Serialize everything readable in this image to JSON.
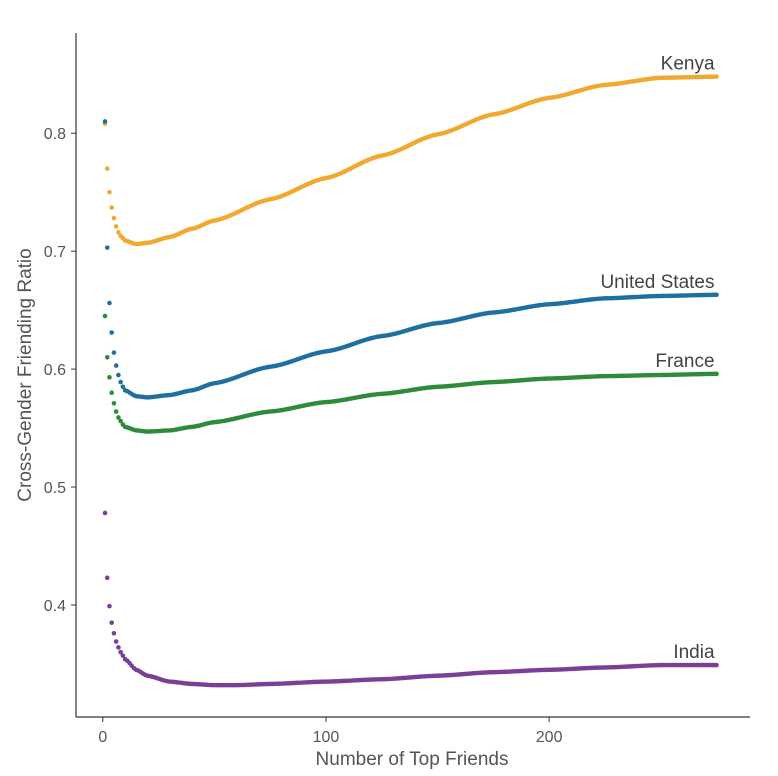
{
  "chart_data": {
    "type": "line",
    "title": "",
    "xlabel": "Number of Top Friends",
    "ylabel": "Cross-Gender Friending Ratio",
    "xlim": [
      -12,
      290
    ],
    "ylim": [
      0.305,
      0.885
    ],
    "x_ticks": [
      0,
      100,
      200
    ],
    "x_tick_labels": [
      "0",
      "100",
      "200"
    ],
    "y_ticks": [
      0.4,
      0.5,
      0.6,
      0.7,
      0.8
    ],
    "y_tick_labels": [
      "0.4",
      "0.5",
      "0.6",
      "0.7",
      "0.8"
    ],
    "grid": false,
    "legend": "none (series labelled at line ends)",
    "series": [
      {
        "name": "Kenya",
        "color": "#F2A82E",
        "points": [
          [
            1,
            0.808
          ],
          [
            2,
            0.77
          ],
          [
            3,
            0.75
          ],
          [
            4,
            0.737
          ],
          [
            5,
            0.728
          ],
          [
            6,
            0.721
          ],
          [
            7,
            0.716
          ],
          [
            8,
            0.713
          ],
          [
            9,
            0.711
          ],
          [
            10,
            0.709
          ],
          [
            15,
            0.706
          ],
          [
            20,
            0.707
          ],
          [
            30,
            0.712
          ],
          [
            40,
            0.719
          ],
          [
            50,
            0.726
          ],
          [
            75,
            0.744
          ],
          [
            100,
            0.762
          ],
          [
            125,
            0.781
          ],
          [
            150,
            0.799
          ],
          [
            175,
            0.816
          ],
          [
            200,
            0.83
          ],
          [
            225,
            0.841
          ],
          [
            250,
            0.847
          ],
          [
            275,
            0.848
          ]
        ]
      },
      {
        "name": "United States",
        "color": "#1F6FA0",
        "points": [
          [
            1,
            0.81
          ],
          [
            2,
            0.703
          ],
          [
            3,
            0.656
          ],
          [
            4,
            0.631
          ],
          [
            5,
            0.614
          ],
          [
            6,
            0.603
          ],
          [
            7,
            0.595
          ],
          [
            8,
            0.589
          ],
          [
            9,
            0.585
          ],
          [
            10,
            0.582
          ],
          [
            15,
            0.577
          ],
          [
            20,
            0.576
          ],
          [
            30,
            0.578
          ],
          [
            40,
            0.582
          ],
          [
            50,
            0.588
          ],
          [
            75,
            0.602
          ],
          [
            100,
            0.615
          ],
          [
            125,
            0.628
          ],
          [
            150,
            0.639
          ],
          [
            175,
            0.648
          ],
          [
            200,
            0.655
          ],
          [
            225,
            0.66
          ],
          [
            250,
            0.662
          ],
          [
            275,
            0.663
          ]
        ]
      },
      {
        "name": "France",
        "color": "#2E8B3A",
        "points": [
          [
            1,
            0.645
          ],
          [
            2,
            0.61
          ],
          [
            3,
            0.593
          ],
          [
            4,
            0.58
          ],
          [
            5,
            0.571
          ],
          [
            6,
            0.564
          ],
          [
            7,
            0.559
          ],
          [
            8,
            0.556
          ],
          [
            9,
            0.553
          ],
          [
            10,
            0.551
          ],
          [
            15,
            0.548
          ],
          [
            20,
            0.547
          ],
          [
            30,
            0.548
          ],
          [
            40,
            0.551
          ],
          [
            50,
            0.555
          ],
          [
            75,
            0.564
          ],
          [
            100,
            0.572
          ],
          [
            125,
            0.579
          ],
          [
            150,
            0.585
          ],
          [
            175,
            0.589
          ],
          [
            200,
            0.592
          ],
          [
            225,
            0.594
          ],
          [
            250,
            0.595
          ],
          [
            275,
            0.596
          ]
        ]
      },
      {
        "name": "India",
        "color": "#7B3F98",
        "points": [
          [
            1,
            0.478
          ],
          [
            2,
            0.423
          ],
          [
            3,
            0.399
          ],
          [
            4,
            0.385
          ],
          [
            5,
            0.376
          ],
          [
            6,
            0.369
          ],
          [
            7,
            0.364
          ],
          [
            8,
            0.36
          ],
          [
            9,
            0.357
          ],
          [
            10,
            0.354
          ],
          [
            15,
            0.345
          ],
          [
            20,
            0.34
          ],
          [
            30,
            0.335
          ],
          [
            40,
            0.333
          ],
          [
            50,
            0.332
          ],
          [
            60,
            0.332
          ],
          [
            75,
            0.333
          ],
          [
            100,
            0.335
          ],
          [
            125,
            0.337
          ],
          [
            150,
            0.34
          ],
          [
            175,
            0.343
          ],
          [
            200,
            0.345
          ],
          [
            225,
            0.347
          ],
          [
            250,
            0.349
          ],
          [
            275,
            0.349
          ]
        ]
      }
    ]
  }
}
